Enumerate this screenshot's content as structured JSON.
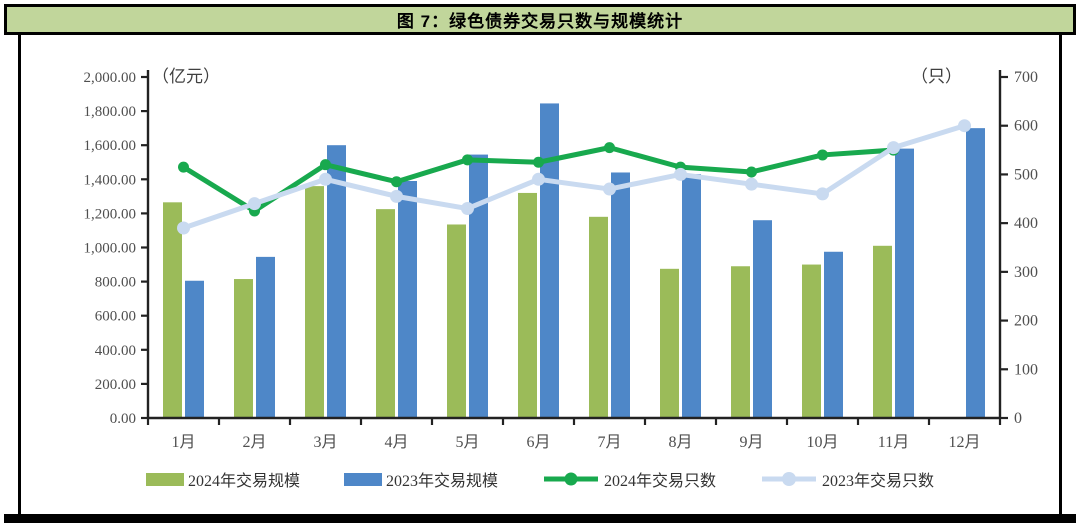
{
  "figure": {
    "title": "图 7：绿色债券交易只数与规模统计",
    "left_axis_unit": "（亿元）",
    "right_axis_unit": "（只）"
  },
  "colors": {
    "title_background": "#c1d69b",
    "frame_border": "#000000",
    "bar_2024": "#9bbb59",
    "bar_2023": "#4e87c8",
    "line_2024": "#18a94e",
    "line_2023": "#c9daf0",
    "axis_text": "#4f4f4f",
    "axis_line": "#222222"
  },
  "chart_data": {
    "type": "combo (grouped bar + line, dual axis)",
    "categories": [
      "1月",
      "2月",
      "3月",
      "4月",
      "5月",
      "6月",
      "7月",
      "8月",
      "9月",
      "10月",
      "11月",
      "12月"
    ],
    "series": [
      {
        "name": "2024年交易规模",
        "type": "bar",
        "axis": "left",
        "color": "#9bbb59",
        "values": [
          1265,
          815,
          1360,
          1225,
          1135,
          1320,
          1180,
          875,
          890,
          900,
          1010,
          null
        ]
      },
      {
        "name": "2023年交易规模",
        "type": "bar",
        "axis": "left",
        "color": "#4e87c8",
        "values": [
          805,
          945,
          1600,
          1390,
          1545,
          1845,
          1440,
          1430,
          1160,
          975,
          1580,
          1700
        ]
      },
      {
        "name": "2024年交易只数",
        "type": "line",
        "axis": "right",
        "color": "#18a94e",
        "values": [
          515,
          425,
          520,
          485,
          530,
          525,
          555,
          515,
          505,
          540,
          550,
          null
        ]
      },
      {
        "name": "2023年交易只数",
        "type": "line",
        "axis": "right",
        "color": "#c9daf0",
        "values": [
          390,
          440,
          490,
          455,
          430,
          490,
          470,
          500,
          480,
          460,
          555,
          600
        ]
      }
    ],
    "left_axis": {
      "label": "（亿元）",
      "min": 0,
      "max": 2000,
      "step": 200,
      "tick_labels": [
        "0.00",
        "200.00",
        "400.00",
        "600.00",
        "800.00",
        "1,000.00",
        "1,200.00",
        "1,400.00",
        "1,600.00",
        "1,800.00",
        "2,000.00"
      ]
    },
    "right_axis": {
      "label": "（只）",
      "min": 0,
      "max": 700,
      "step": 100,
      "tick_labels": [
        "0",
        "100",
        "200",
        "300",
        "400",
        "500",
        "600",
        "700"
      ]
    },
    "grid": false,
    "legend_position": "bottom"
  }
}
